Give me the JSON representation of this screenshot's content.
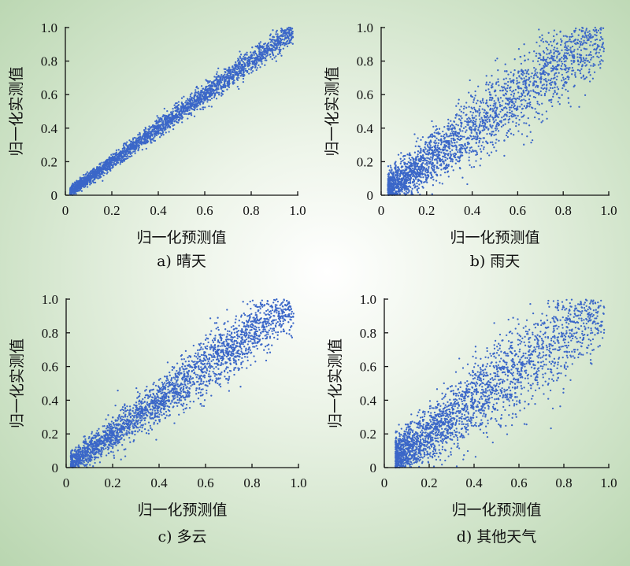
{
  "chart_data": [
    {
      "type": "scatter",
      "caption": "a) 晴天",
      "xlabel": "归一化预测值",
      "ylabel": "归一化实测值",
      "xlim": [
        0,
        1.0
      ],
      "ylim": [
        0,
        1.0
      ],
      "xticks": [
        "0",
        "0.2",
        "0.4",
        "0.6",
        "0.8",
        "1.0"
      ],
      "yticks": [
        "0",
        "0.2",
        "0.4",
        "0.6",
        "0.8",
        "1.0"
      ],
      "series": [
        {
          "color": "#3b67c8",
          "points": 2600,
          "trend": "y≈x",
          "spread": 0.025,
          "x_range": [
            0.02,
            0.98
          ]
        }
      ]
    },
    {
      "type": "scatter",
      "caption": "b) 雨天",
      "xlabel": "归一化预测值",
      "ylabel": "归一化实测值",
      "xlim": [
        0,
        1.0
      ],
      "ylim": [
        0,
        1.0
      ],
      "xticks": [
        "0",
        "0.2",
        "0.4",
        "0.6",
        "0.8",
        "1.0"
      ],
      "yticks": [
        "0",
        "0.2",
        "0.4",
        "0.6",
        "0.8",
        "1.0"
      ],
      "series": [
        {
          "color": "#3b67c8",
          "points": 2600,
          "trend": "y≈x",
          "spread": 0.085,
          "x_range": [
            0.03,
            0.98
          ]
        }
      ]
    },
    {
      "type": "scatter",
      "caption": "c) 多云",
      "xlabel": "归一化预测值",
      "ylabel": "归一化实测值",
      "xlim": [
        0,
        1.0
      ],
      "ylim": [
        0,
        1.0
      ],
      "xticks": [
        "0",
        "0.2",
        "0.4",
        "0.6",
        "0.8",
        "1.0"
      ],
      "yticks": [
        "0",
        "0.2",
        "0.4",
        "0.6",
        "0.8",
        "1.0"
      ],
      "series": [
        {
          "color": "#3b67c8",
          "points": 2600,
          "trend": "y≈x",
          "spread": 0.06,
          "x_range": [
            0.02,
            0.98
          ]
        }
      ]
    },
    {
      "type": "scatter",
      "caption": "d) 其他天气",
      "xlabel": "归一化预测值",
      "ylabel": "归一化实测值",
      "xlim": [
        0,
        1.0
      ],
      "ylim": [
        0,
        1.0
      ],
      "xticks": [
        "0",
        "0.2",
        "0.4",
        "0.6",
        "0.8",
        "1.0"
      ],
      "yticks": [
        "0",
        "0.2",
        "0.4",
        "0.6",
        "0.8",
        "1.0"
      ],
      "series": [
        {
          "color": "#3b67c8",
          "points": 2600,
          "trend": "y≈x",
          "spread": 0.1,
          "x_range": [
            0.05,
            0.98
          ]
        }
      ]
    }
  ]
}
